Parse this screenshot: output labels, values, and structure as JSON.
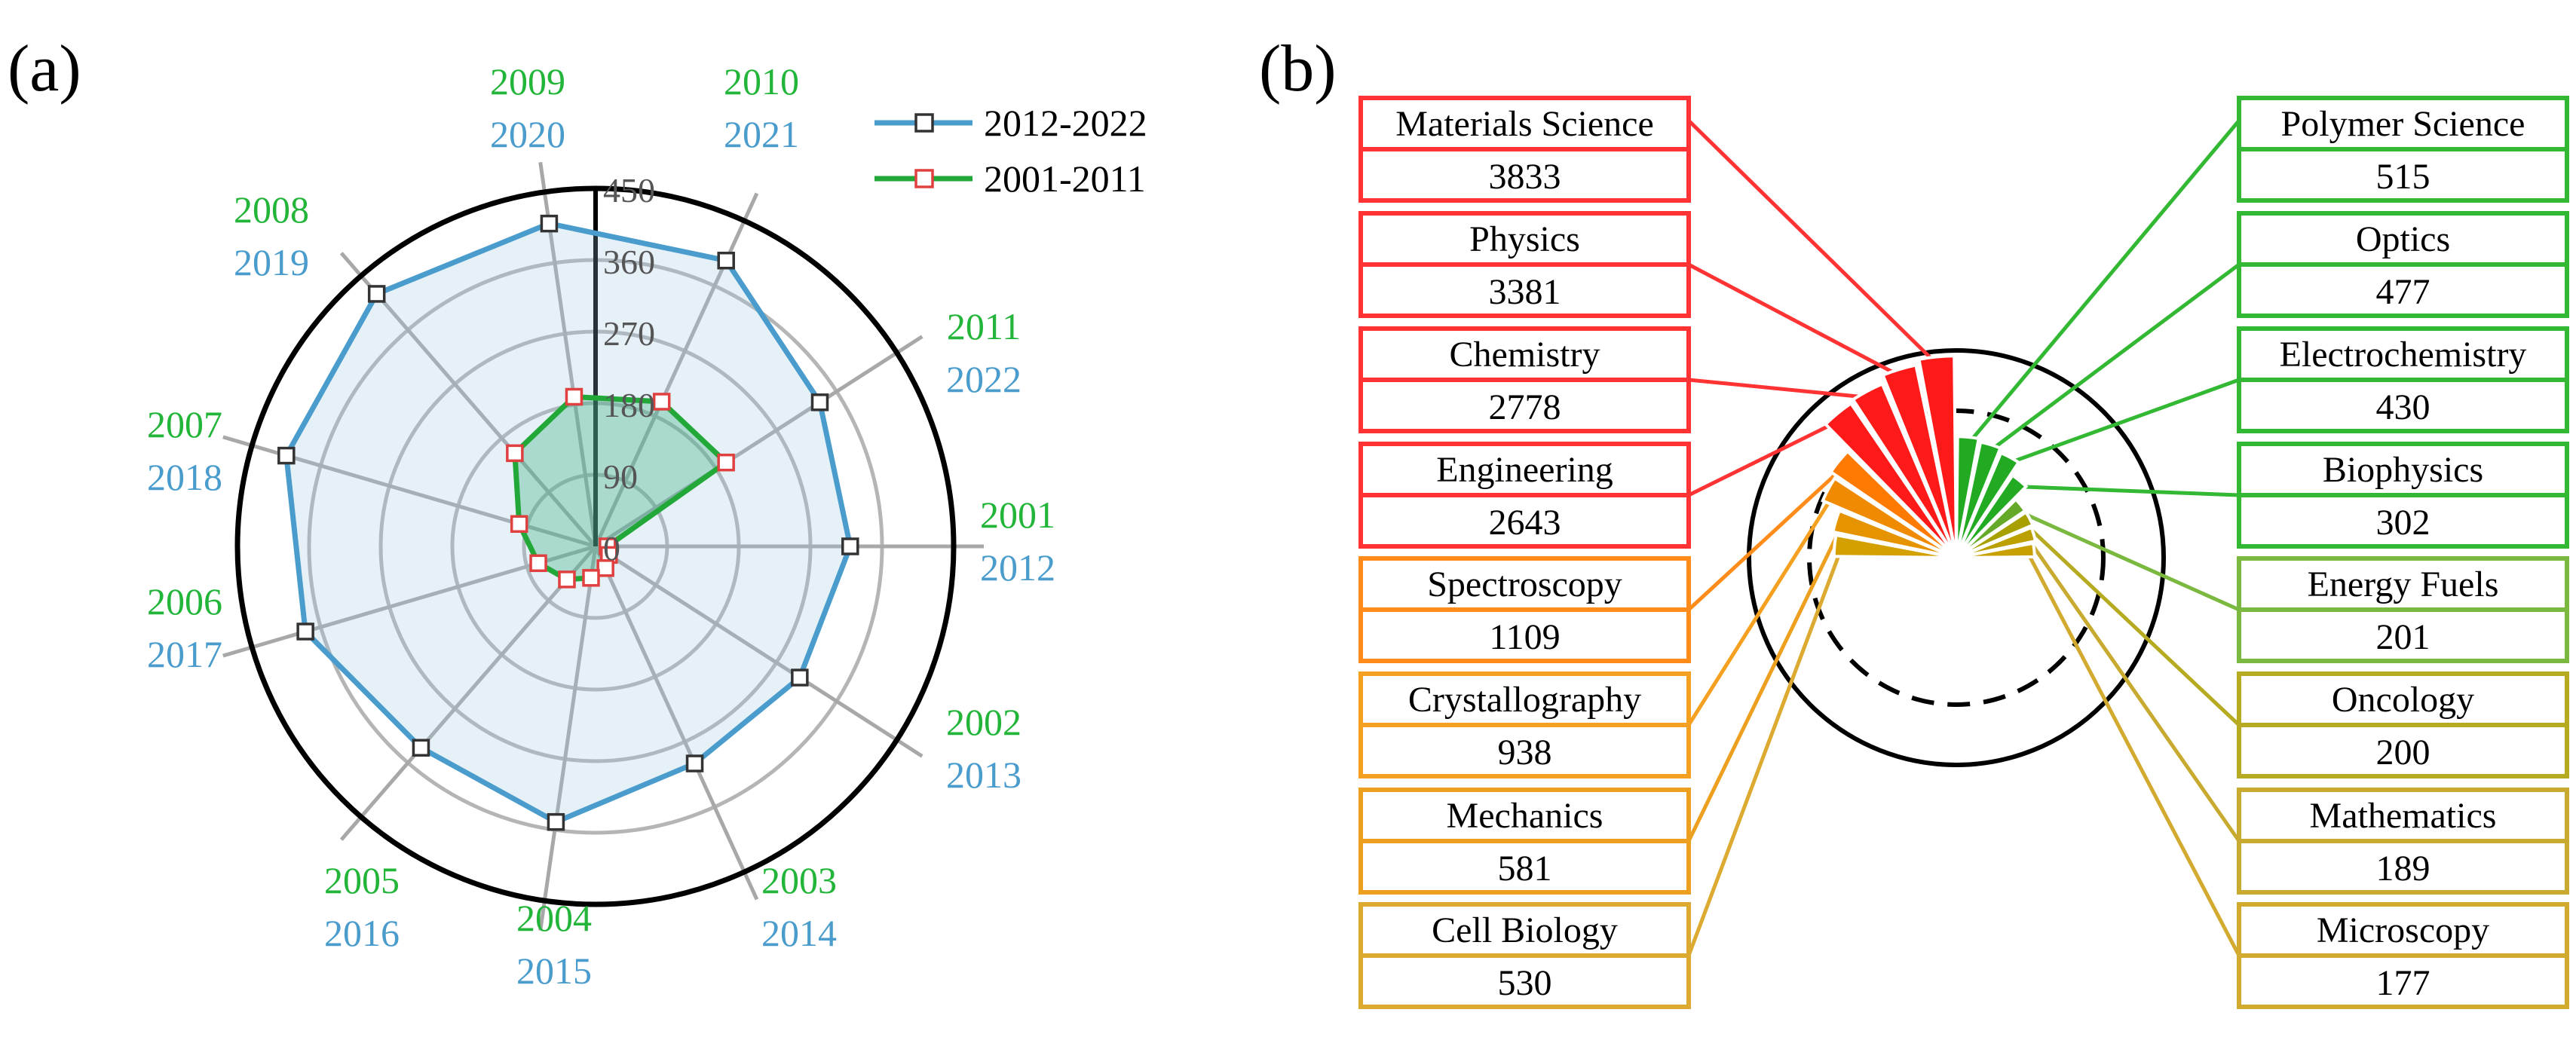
{
  "chart_data": [
    {
      "type": "radar",
      "panel_label": "(a)",
      "radial_axis": {
        "min": 0,
        "max": 450,
        "ticks": [
          "0",
          "90",
          "180",
          "270",
          "360",
          "450"
        ]
      },
      "angular_labels": {
        "series_b": [
          "2001",
          "2002",
          "2003",
          "2004",
          "2005",
          "2006",
          "2007",
          "2008",
          "2009",
          "2010",
          "2011"
        ],
        "series_a": [
          "2012",
          "2013",
          "2014",
          "2015",
          "2016",
          "2017",
          "2018",
          "2019",
          "2020",
          "2021",
          "2022"
        ]
      },
      "series": [
        {
          "name": "2012-2022",
          "color": "#4a9ccc",
          "values": [
            320,
            305,
            300,
            350,
            335,
            380,
            405,
            420,
            410,
            395,
            335
          ]
        },
        {
          "name": "2001-2011",
          "color": "#22a838",
          "values": [
            15,
            20,
            30,
            40,
            55,
            75,
            100,
            155,
            190,
            200,
            195
          ]
        }
      ],
      "legend_position": "top-right"
    },
    {
      "type": "radial-bar",
      "panel_label": "(b)",
      "categories": [
        {
          "name": "Materials Science",
          "value": "3833",
          "color": "#ff1a1a",
          "box": "#ff3333"
        },
        {
          "name": "Physics",
          "value": "3381",
          "color": "#ff1a1a",
          "box": "#ff3333"
        },
        {
          "name": "Chemistry",
          "value": "2778",
          "color": "#ff1a1a",
          "box": "#ff3333"
        },
        {
          "name": "Engineering",
          "value": "2643",
          "color": "#ff1a1a",
          "box": "#ff3333"
        },
        {
          "name": "Spectroscopy",
          "value": "1109",
          "color": "#ff7a00",
          "box": "#ff8c1a"
        },
        {
          "name": "Crystallography",
          "value": "938",
          "color": "#f08a00",
          "box": "#f5a020"
        },
        {
          "name": "Mechanics",
          "value": "581",
          "color": "#e59400",
          "box": "#eda020"
        },
        {
          "name": "Cell Biology",
          "value": "530",
          "color": "#d4a000",
          "box": "#dcaa30"
        },
        {
          "name": "Polymer Science",
          "value": "515",
          "color": "#22aa22",
          "box": "#33b833"
        },
        {
          "name": "Optics",
          "value": "477",
          "color": "#22aa22",
          "box": "#33b833"
        },
        {
          "name": "Electrochemistry",
          "value": "430",
          "color": "#22aa22",
          "box": "#33b833"
        },
        {
          "name": "Biophysics",
          "value": "302",
          "color": "#22aa22",
          "box": "#33b833"
        },
        {
          "name": "Energy Fuels",
          "value": "201",
          "color": "#66a828",
          "box": "#7ab840"
        },
        {
          "name": "Oncology",
          "value": "200",
          "color": "#a8a000",
          "box": "#b5aa20"
        },
        {
          "name": "Mathematics",
          "value": "189",
          "color": "#bca000",
          "box": "#c8aa30"
        },
        {
          "name": "Microscopy",
          "value": "177",
          "color": "#c8a000",
          "box": "#d2aa30"
        }
      ]
    }
  ]
}
